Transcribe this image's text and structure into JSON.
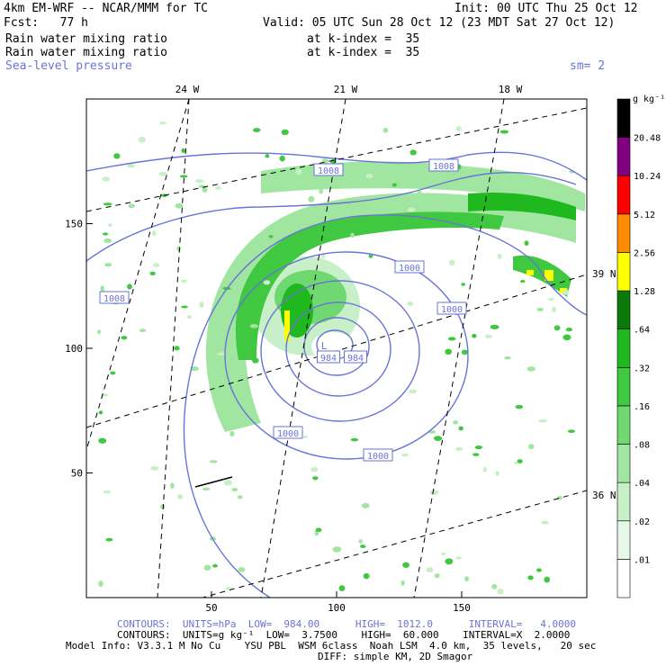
{
  "header": {
    "model": "4km EM-WRF -- NCAR/MMM for TC",
    "init": "Init: 00 UTC Thu 25 Oct 12",
    "fcst": "Fcst:   77 h",
    "valid": "Valid: 05 UTC Sun 28 Oct 12 (23 MDT Sat 27 Oct 12)",
    "field1": "Rain water mixing ratio",
    "field1_level": "at k-index =  35",
    "field2": "Rain water mixing ratio",
    "field2_level": "at k-index =  35",
    "field3": "Sea-level pressure",
    "smoothing": "sm= 2"
  },
  "footer": {
    "line1": "CONTOURS:  UNITS=hPa  LOW=  984.00      HIGH=  1012.0      INTERVAL=   4.0000",
    "line2": "CONTOURS:  UNITS=g kg⁻¹  LOW=  3.7500    HIGH=  60.000    INTERVAL=X  2.0000",
    "line3": "Model Info: V3.3.1 M No Cu    YSU PBL  WSM 6class  Noah LSM  4.0 km,  35 levels,   20 sec",
    "line4": "DIFF: simple KM, 2D Smagor"
  },
  "colors": {
    "pressure_contour": "#6a73d9",
    "rain_scale": [
      "#ffffff",
      "#e8f8e8",
      "#c8f0c8",
      "#a0e6a0",
      "#70d870",
      "#40c840",
      "#1fb81f",
      "#0b7a0b",
      "#ffff00",
      "#ff8c00",
      "#ff0000",
      "#800080"
    ]
  },
  "chart_data": {
    "type": "heatmap",
    "title": "Rain water mixing ratio / Sea-level pressure",
    "x_ticks": [
      50,
      100,
      150
    ],
    "y_ticks": [
      50,
      100,
      150
    ],
    "xlim": [
      0,
      200
    ],
    "ylim": [
      0,
      200
    ],
    "lon_labels": [
      "24 W",
      "21 W",
      "18 W"
    ],
    "lat_labels": [
      "39 N",
      "36 N"
    ],
    "colorbar": {
      "units": "g kg⁻¹",
      "levels": [
        ".01",
        ".02",
        ".04",
        ".08",
        ".16",
        ".32",
        ".64",
        "1.28",
        "2.56",
        "5.12",
        "10.24",
        "20.48"
      ]
    },
    "pressure_labels": [
      "1008",
      "1008",
      "1008",
      "1000",
      "1000",
      "1000",
      "1000",
      "984",
      "984"
    ],
    "low_center_label": "L"
  }
}
